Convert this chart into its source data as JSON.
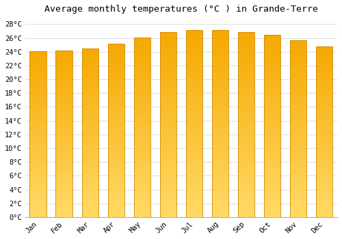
{
  "title": "Average monthly temperatures (°C ) in Grande-Terre",
  "months": [
    "Jan",
    "Feb",
    "Mar",
    "Apr",
    "May",
    "Jun",
    "Jul",
    "Aug",
    "Sep",
    "Oct",
    "Nov",
    "Dec"
  ],
  "temperatures": [
    24.1,
    24.2,
    24.5,
    25.2,
    26.1,
    26.8,
    27.1,
    27.1,
    26.8,
    26.5,
    25.7,
    24.8
  ],
  "bar_color_top": "#F5A800",
  "bar_color_bottom": "#FFD966",
  "ylim": [
    0,
    29
  ],
  "yticks": [
    0,
    2,
    4,
    6,
    8,
    10,
    12,
    14,
    16,
    18,
    20,
    22,
    24,
    26,
    28
  ],
  "ytick_labels": [
    "0°C",
    "2°C",
    "4°C",
    "6°C",
    "8°C",
    "10°C",
    "12°C",
    "14°C",
    "16°C",
    "18°C",
    "20°C",
    "22°C",
    "24°C",
    "26°C",
    "28°C"
  ],
  "background_color": "#ffffff",
  "grid_color": "#e0e0e0",
  "title_fontsize": 9.5,
  "tick_fontsize": 7.5,
  "bar_edge_color": "#cc8800",
  "font_family": "monospace",
  "bar_width": 0.65
}
